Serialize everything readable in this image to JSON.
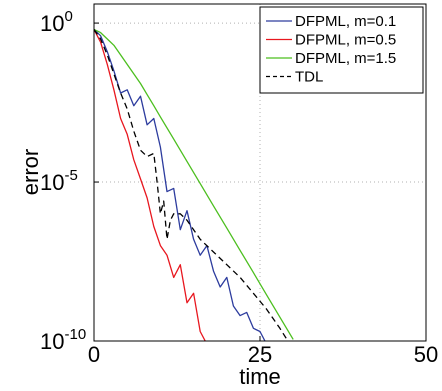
{
  "chart_data": {
    "type": "line",
    "title": "",
    "xlabel": "time",
    "ylabel": "error",
    "xlim": [
      0,
      50
    ],
    "ylim_exponent": [
      -10,
      1
    ],
    "y_scale": "log",
    "grid": true,
    "legend_position": "top-right",
    "x_ticks": [
      {
        "value": 0,
        "label": "0"
      },
      {
        "value": 25,
        "label": "25"
      },
      {
        "value": 50,
        "label": "50"
      }
    ],
    "y_ticks": [
      {
        "exp": 0,
        "base": "10",
        "exponent": "0"
      },
      {
        "exp": -5,
        "base": "10",
        "exponent": "-5"
      },
      {
        "exp": -10,
        "base": "10",
        "exponent": "-10"
      }
    ],
    "series": [
      {
        "name": "DFPML, m=0.1",
        "color": "#2d3c9e",
        "dash": "",
        "x": [
          0,
          1,
          2,
          3,
          4,
          5,
          6,
          7,
          8,
          9,
          10,
          11,
          12,
          13,
          14,
          15,
          16,
          17,
          18,
          19,
          20,
          21,
          22,
          23,
          24,
          25,
          26
        ],
        "log10_y": [
          -0.2,
          -0.4,
          -0.9,
          -1.5,
          -2.2,
          -2.1,
          -2.6,
          -2.3,
          -3.2,
          -3.0,
          -3.9,
          -5.3,
          -5.2,
          -6.5,
          -5.9,
          -6.8,
          -7.3,
          -7.0,
          -7.8,
          -8.3,
          -8.0,
          -8.9,
          -9.2,
          -9.1,
          -9.6,
          -9.7,
          -10.1
        ]
      },
      {
        "name": "DFPML, m=0.5",
        "color": "#e8171f",
        "dash": "",
        "x": [
          0,
          1,
          2,
          3,
          4,
          5,
          6,
          7,
          8,
          9,
          10,
          11,
          12,
          13,
          14,
          15,
          16,
          17
        ],
        "log10_y": [
          -0.2,
          -0.6,
          -1.3,
          -2.1,
          -3.0,
          -3.5,
          -4.3,
          -4.9,
          -5.5,
          -6.4,
          -7.0,
          -7.3,
          -8.0,
          -7.6,
          -8.8,
          -8.5,
          -9.7,
          -10.1
        ]
      },
      {
        "name": "DFPML, m=1.5",
        "color": "#4cbf1f",
        "dash": "",
        "x": [
          0,
          1,
          2,
          3,
          4,
          5,
          6,
          7,
          8,
          9,
          10,
          12,
          14,
          16,
          18,
          20,
          22,
          24,
          26,
          28,
          30
        ],
        "log10_y": [
          -0.2,
          -0.3,
          -0.5,
          -0.7,
          -1.0,
          -1.3,
          -1.6,
          -1.9,
          -2.25,
          -2.6,
          -2.95,
          -3.65,
          -4.35,
          -5.05,
          -5.75,
          -6.45,
          -7.15,
          -7.85,
          -8.55,
          -9.25,
          -9.95
        ]
      },
      {
        "name": "TDL",
        "color": "#000000",
        "dash": "6,4",
        "x": [
          0,
          1,
          2,
          3,
          4,
          5,
          6,
          7,
          8,
          9,
          9.5,
          10,
          10.5,
          11,
          11.5,
          12,
          13,
          14,
          16,
          18,
          20,
          22,
          24,
          26,
          28,
          29.5
        ],
        "log10_y": [
          -0.2,
          -0.5,
          -1.0,
          -1.6,
          -2.2,
          -2.7,
          -3.4,
          -4.0,
          -4.2,
          -4.1,
          -5.0,
          -6.0,
          -5.6,
          -6.8,
          -6.2,
          -6.0,
          -6.0,
          -6.2,
          -6.8,
          -7.2,
          -7.6,
          -8.0,
          -8.5,
          -9.0,
          -9.6,
          -10.1
        ]
      }
    ]
  }
}
